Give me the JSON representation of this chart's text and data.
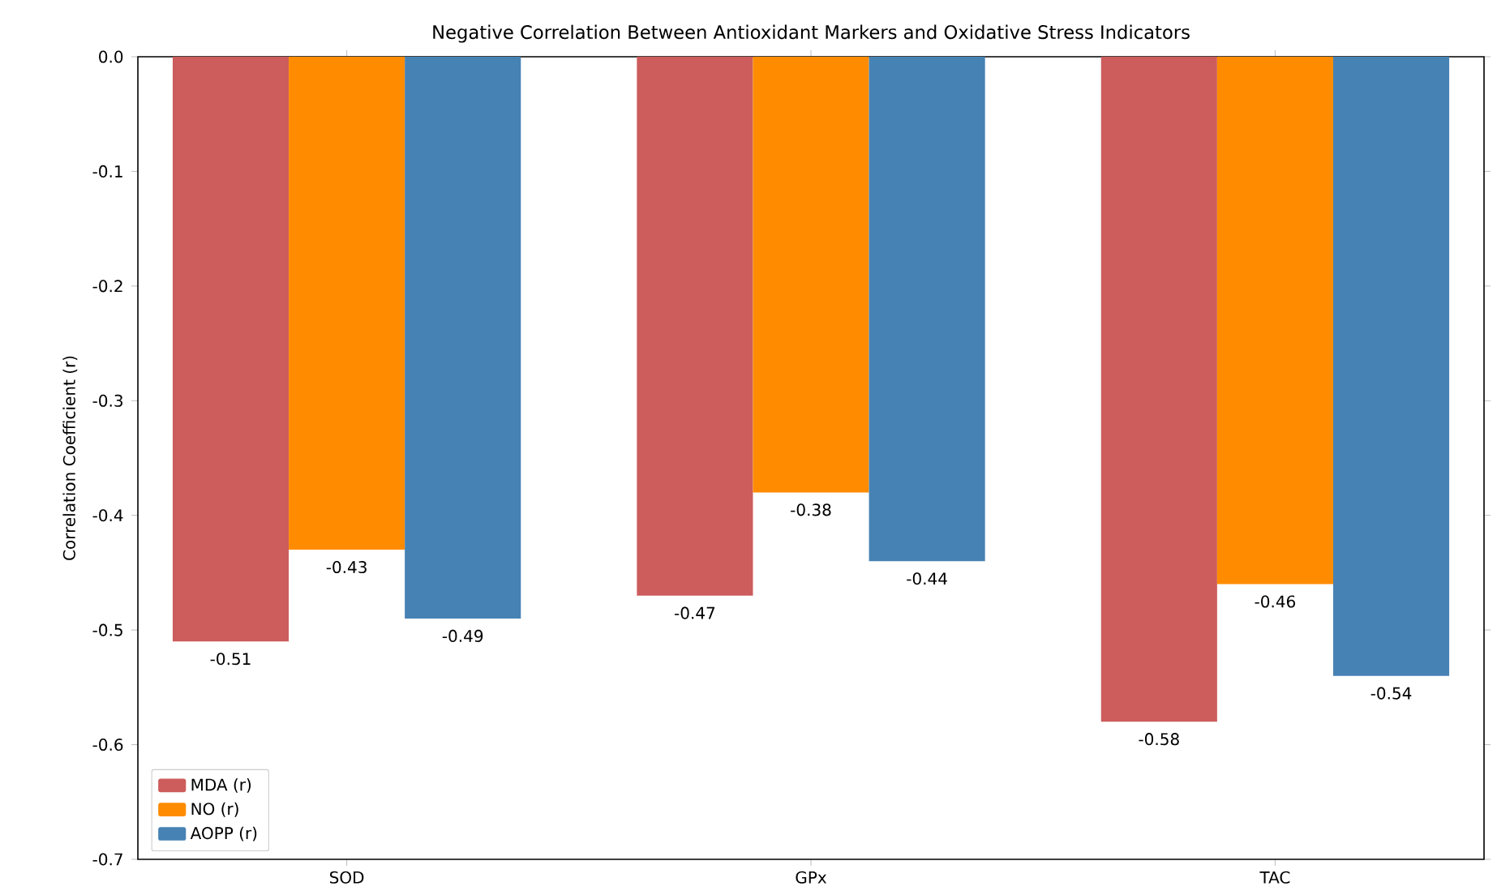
{
  "chart_data": {
    "type": "bar",
    "title": "Negative Correlation Between Antioxidant Markers and Oxidative Stress Indicators",
    "ylabel": "Correlation Coefficient (r)",
    "categories": [
      "SOD",
      "GPx",
      "TAC"
    ],
    "series": [
      {
        "name": "MDA (r)",
        "color": "#cd5c5c",
        "values": [
          -0.51,
          -0.47,
          -0.58
        ]
      },
      {
        "name": "NO (r)",
        "color": "#ff8c00",
        "values": [
          -0.43,
          -0.38,
          -0.46
        ]
      },
      {
        "name": "AOPP (r)",
        "color": "#4682b4",
        "values": [
          -0.49,
          -0.44,
          -0.54
        ]
      }
    ],
    "ylim": [
      -0.7,
      0
    ],
    "yticks": [
      {
        "value": -0.7,
        "label": "-0.7"
      },
      {
        "value": -0.6,
        "label": "-0.6"
      },
      {
        "value": -0.5,
        "label": "-0.5"
      },
      {
        "value": -0.4,
        "label": "-0.4"
      },
      {
        "value": -0.3,
        "label": "-0.3"
      },
      {
        "value": -0.2,
        "label": "-0.2"
      },
      {
        "value": -0.1,
        "label": "-0.1"
      },
      {
        "value": 0,
        "label": "0.0"
      }
    ],
    "data_labels": true,
    "grid": false,
    "legend": "bottom left"
  }
}
